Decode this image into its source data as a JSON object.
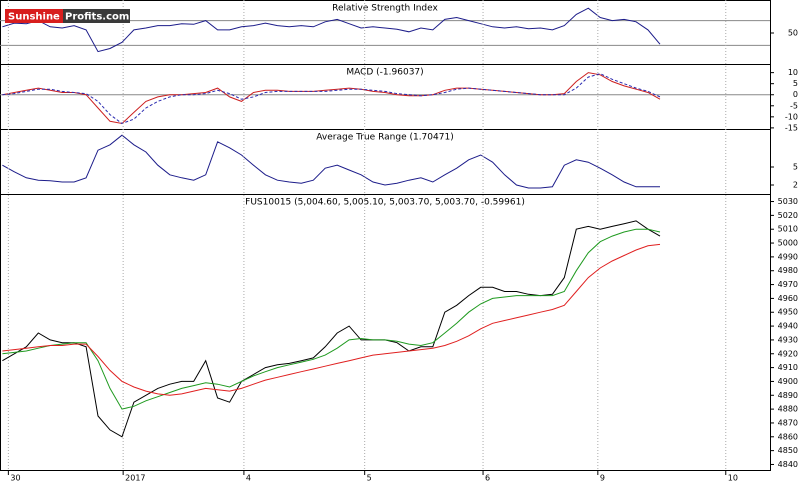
{
  "logo": {
    "first": "Sunshine",
    "second": "Profits.com"
  },
  "chart_data": [
    {
      "type": "line",
      "title": "Relative Strength Index",
      "x": [
        -0.05,
        0.05,
        0.15,
        0.25,
        0.35,
        0.45,
        0.55,
        0.65,
        0.75,
        0.85,
        0.95,
        1.05,
        1.15,
        1.25,
        1.35,
        1.45,
        1.55,
        1.65,
        1.75,
        1.85,
        1.95,
        2.05,
        2.15,
        2.25,
        2.35,
        2.45,
        2.55,
        2.65,
        2.75,
        2.85,
        2.95,
        3.05,
        3.15,
        3.25,
        3.35,
        3.45,
        3.55,
        3.65,
        3.75,
        3.85,
        3.95,
        4.05,
        4.15,
        4.25,
        4.35,
        4.45,
        4.55,
        4.65,
        4.75,
        4.85,
        4.95,
        5.05,
        5.15,
        5.25,
        5.35,
        5.45
      ],
      "xlim": [
        -0.07,
        6.37
      ],
      "ylim": [
        0,
        100
      ],
      "yticks": [
        50
      ],
      "levels": [
        30,
        70
      ],
      "series": [
        {
          "color": "#1c1c8a",
          "values": [
            60,
            66,
            65,
            70,
            60,
            58,
            62,
            55,
            20,
            25,
            35,
            55,
            58,
            62,
            62,
            65,
            64,
            70,
            55,
            55,
            60,
            62,
            66,
            62,
            60,
            62,
            60,
            68,
            72,
            65,
            58,
            60,
            58,
            56,
            52,
            58,
            55,
            72,
            75,
            70,
            65,
            60,
            58,
            60,
            57,
            58,
            55,
            62,
            80,
            90,
            75,
            70,
            72,
            68,
            55,
            32
          ]
        }
      ]
    },
    {
      "type": "line",
      "title": "MACD (-1.96037)",
      "x": [
        -0.05,
        0.05,
        0.15,
        0.25,
        0.35,
        0.45,
        0.55,
        0.65,
        0.75,
        0.85,
        0.95,
        1.05,
        1.15,
        1.25,
        1.35,
        1.45,
        1.55,
        1.65,
        1.75,
        1.85,
        1.95,
        2.05,
        2.15,
        2.25,
        2.35,
        2.45,
        2.55,
        2.65,
        2.75,
        2.85,
        2.95,
        3.05,
        3.15,
        3.25,
        3.35,
        3.45,
        3.55,
        3.65,
        3.75,
        3.85,
        3.95,
        4.05,
        4.15,
        4.25,
        4.35,
        4.45,
        4.55,
        4.65,
        4.75,
        4.85,
        4.95,
        5.05,
        5.15,
        5.25,
        5.35,
        5.45
      ],
      "xlim": [
        -0.07,
        6.37
      ],
      "ylim": [
        -15.5,
        13
      ],
      "yticks": [
        10,
        5,
        0,
        -5,
        -10,
        -15
      ],
      "levels": [
        0
      ],
      "series": [
        {
          "color": "#cc1f1f",
          "dashed": false,
          "values": [
            0,
            1,
            2,
            3,
            2,
            1,
            1,
            0,
            -6,
            -12,
            -13,
            -8,
            -3,
            -1,
            0,
            0,
            0.5,
            1,
            3,
            -1,
            -3,
            1,
            2,
            2,
            1.5,
            1.5,
            1.5,
            2,
            2.5,
            3,
            2.5,
            1.5,
            1,
            0,
            -0.5,
            -0.5,
            0,
            2,
            3,
            3,
            2.5,
            2,
            1.5,
            1,
            0.5,
            0,
            0,
            0.5,
            6,
            10,
            9,
            6,
            4,
            2.5,
            1,
            -2
          ]
        },
        {
          "color": "#2a2ab0",
          "dashed": true,
          "values": [
            0,
            0.5,
            1.5,
            2.5,
            2.5,
            1.5,
            1,
            0.5,
            -3,
            -9,
            -13,
            -11,
            -6,
            -3,
            -1,
            0,
            0,
            0.5,
            2,
            0.5,
            -2,
            -1,
            1,
            1.5,
            1.5,
            1.5,
            1.5,
            1.5,
            2,
            2.5,
            2.5,
            2,
            1.5,
            0.5,
            0,
            -0.5,
            0,
            1,
            2.5,
            3,
            2.5,
            2,
            1.5,
            1,
            0.5,
            0,
            0,
            0,
            3,
            8,
            9.5,
            7,
            5,
            3,
            1.5,
            -1
          ]
        }
      ]
    },
    {
      "type": "line",
      "title": "Average True Range (1.70471)",
      "x": [
        -0.05,
        0.05,
        0.15,
        0.25,
        0.35,
        0.45,
        0.55,
        0.65,
        0.75,
        0.85,
        0.95,
        1.05,
        1.15,
        1.25,
        1.35,
        1.45,
        1.55,
        1.65,
        1.75,
        1.85,
        1.95,
        2.05,
        2.15,
        2.25,
        2.35,
        2.45,
        2.55,
        2.65,
        2.75,
        2.85,
        2.95,
        3.05,
        3.15,
        3.25,
        3.35,
        3.45,
        3.55,
        3.65,
        3.75,
        3.85,
        3.95,
        4.05,
        4.15,
        4.25,
        4.35,
        4.45,
        4.55,
        4.65,
        4.75,
        4.85,
        4.95,
        5.05,
        5.15,
        5.25,
        5.35,
        5.45
      ],
      "xlim": [
        -0.07,
        6.37
      ],
      "ylim": [
        0.5,
        11
      ],
      "yticks": [
        5,
        2
      ],
      "series": [
        {
          "color": "#1c1c8a",
          "values": [
            5.3,
            4.2,
            3.2,
            2.8,
            2.7,
            2.5,
            2.5,
            3.2,
            7.8,
            8.7,
            10.3,
            8.7,
            7.5,
            5.3,
            3.7,
            3.2,
            2.8,
            3.7,
            9.2,
            8.2,
            7,
            5.3,
            3.7,
            2.8,
            2.5,
            2.3,
            2.8,
            4.8,
            5.3,
            4.5,
            3.7,
            2.5,
            2,
            2.3,
            2.8,
            3.2,
            2.5,
            3.7,
            4.8,
            6.2,
            7,
            5.8,
            3.7,
            2,
            1.5,
            1.5,
            1.7,
            5.3,
            6.2,
            5.8,
            4.8,
            3.7,
            2.5,
            1.7,
            1.7,
            1.7
          ]
        }
      ]
    },
    {
      "type": "line",
      "title": "FUS10015 (5,004.60, 5,005.10, 5,003.70, 5,003.70, -0.59961)",
      "x": [
        -0.05,
        0.05,
        0.15,
        0.25,
        0.35,
        0.45,
        0.55,
        0.65,
        0.75,
        0.85,
        0.95,
        1.05,
        1.15,
        1.25,
        1.35,
        1.45,
        1.55,
        1.65,
        1.75,
        1.85,
        1.95,
        2.05,
        2.15,
        2.25,
        2.35,
        2.45,
        2.55,
        2.65,
        2.75,
        2.85,
        2.95,
        3.05,
        3.15,
        3.25,
        3.35,
        3.45,
        3.55,
        3.65,
        3.75,
        3.85,
        3.95,
        4.05,
        4.15,
        4.25,
        4.35,
        4.45,
        4.55,
        4.65,
        4.75,
        4.85,
        4.95,
        5.05,
        5.15,
        5.25,
        5.35,
        5.45
      ],
      "xlim": [
        -0.07,
        6.37
      ],
      "ylim": [
        4836,
        5034
      ],
      "xticks": [
        {
          "value": 0,
          "label": "30"
        },
        {
          "value": 0.96,
          "label": "2017"
        },
        {
          "value": 1.97,
          "label": "4"
        },
        {
          "value": 2.98,
          "label": "5"
        },
        {
          "value": 3.97,
          "label": "6"
        },
        {
          "value": 4.93,
          "label": "9"
        },
        {
          "value": 6,
          "label": "10"
        }
      ],
      "yticks": [
        5030,
        5020,
        5010,
        5000,
        4990,
        4980,
        4970,
        4960,
        4950,
        4940,
        4930,
        4920,
        4910,
        4900,
        4890,
        4880,
        4870,
        4860,
        4850,
        4840
      ],
      "series": [
        {
          "color": "#000000",
          "values": [
            4915,
            4920,
            4925,
            4935,
            4930,
            4928,
            4928,
            4925,
            4875,
            4865,
            4860,
            4885,
            4890,
            4895,
            4898,
            4900,
            4900,
            4915,
            4888,
            4885,
            4900,
            4905,
            4910,
            4912,
            4913,
            4915,
            4917,
            4925,
            4935,
            4940,
            4930,
            4930,
            4930,
            4928,
            4922,
            4925,
            4925,
            4950,
            4955,
            4962,
            4968,
            4968,
            4965,
            4965,
            4963,
            4962,
            4963,
            4975,
            5010,
            5012,
            5010,
            5012,
            5014,
            5016,
            5010,
            5005
          ]
        },
        {
          "color": "#1f9a1f",
          "values": [
            4920,
            4921,
            4922,
            4924,
            4926,
            4927,
            4928,
            4928,
            4915,
            4895,
            4880,
            4882,
            4886,
            4889,
            4892,
            4895,
            4897,
            4899,
            4898,
            4896,
            4900,
            4904,
            4907,
            4910,
            4912,
            4914,
            4916,
            4919,
            4924,
            4930,
            4931,
            4930,
            4930,
            4929,
            4927,
            4926,
            4928,
            4935,
            4942,
            4950,
            4956,
            4960,
            4961,
            4962,
            4962,
            4962,
            4962,
            4965,
            4980,
            4993,
            5001,
            5005,
            5008,
            5010,
            5010,
            5008
          ]
        },
        {
          "color": "#e02020",
          "values": [
            4922,
            4923,
            4924,
            4925,
            4926,
            4926,
            4927,
            4927,
            4918,
            4908,
            4900,
            4896,
            4893,
            4891,
            4890,
            4891,
            4893,
            4895,
            4894,
            4893,
            4895,
            4898,
            4901,
            4903,
            4905,
            4907,
            4909,
            4911,
            4913,
            4915,
            4917,
            4919,
            4920,
            4921,
            4922,
            4923,
            4924,
            4926,
            4929,
            4933,
            4938,
            4942,
            4944,
            4946,
            4948,
            4950,
            4952,
            4955,
            4965,
            4975,
            4982,
            4987,
            4991,
            4995,
            4998,
            4999
          ]
        }
      ]
    }
  ]
}
